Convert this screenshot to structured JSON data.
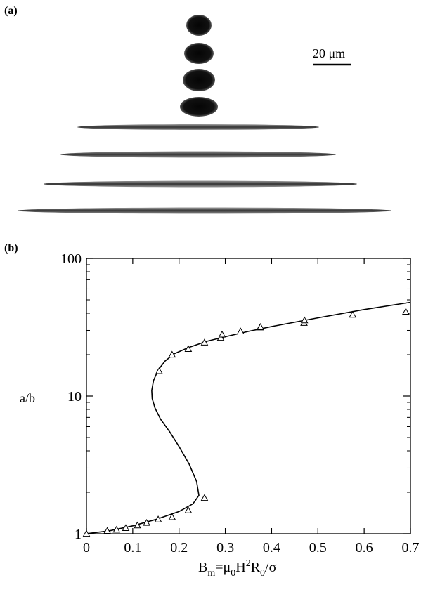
{
  "panel_a": {
    "label": "(a)",
    "scale_bar_label": "20 μm",
    "droplets": [
      {
        "shape": "sphere"
      },
      {
        "shape": "near-sphere"
      },
      {
        "shape": "near-sphere"
      },
      {
        "shape": "oblate"
      },
      {
        "shape": "elongated"
      },
      {
        "shape": "elongated"
      },
      {
        "shape": "elongated"
      },
      {
        "shape": "elongated"
      }
    ]
  },
  "panel_b": {
    "label": "(b)"
  },
  "chart_data": {
    "type": "scatter",
    "xlabel_parts": {
      "base": "B",
      "sub": "m",
      "rest": "=μ",
      "sub0": "0",
      "H": "H",
      "sup2": "2",
      "R": "R",
      "subR": "0",
      "tail": "/σ"
    },
    "ylabel": "a/b",
    "xlim": [
      0,
      0.7
    ],
    "ylim": [
      1,
      100
    ],
    "yscale": "log",
    "x_ticks": [
      "0",
      "0.1",
      "0.2",
      "0.3",
      "0.4",
      "0.5",
      "0.6",
      "0.7"
    ],
    "y_ticks": [
      "1",
      "10",
      "100"
    ],
    "grid": false,
    "series": [
      {
        "marker": "triangle-open",
        "points": [
          [
            0.0,
            1.0
          ],
          [
            0.045,
            1.05
          ],
          [
            0.065,
            1.07
          ],
          [
            0.085,
            1.1
          ],
          [
            0.11,
            1.15
          ],
          [
            0.13,
            1.2
          ],
          [
            0.155,
            1.27
          ],
          [
            0.185,
            1.32
          ],
          [
            0.22,
            1.48
          ],
          [
            0.255,
            1.82
          ],
          [
            0.157,
            15.2
          ],
          [
            0.185,
            20.0
          ],
          [
            0.22,
            22.0
          ],
          [
            0.255,
            24.5
          ],
          [
            0.29,
            26.5
          ],
          [
            0.293,
            28.0
          ],
          [
            0.333,
            29.5
          ],
          [
            0.375,
            31.5
          ],
          [
            0.376,
            31.8
          ],
          [
            0.47,
            34.0
          ],
          [
            0.471,
            35.5
          ],
          [
            0.575,
            39.0
          ],
          [
            0.69,
            41.0
          ]
        ]
      },
      {
        "marker": "line",
        "points": [
          [
            0.0,
            1.0
          ],
          [
            0.05,
            1.05
          ],
          [
            0.1,
            1.14
          ],
          [
            0.15,
            1.27
          ],
          [
            0.2,
            1.45
          ],
          [
            0.23,
            1.65
          ],
          [
            0.243,
            1.9
          ],
          [
            0.238,
            2.4
          ],
          [
            0.222,
            3.2
          ],
          [
            0.2,
            4.3
          ],
          [
            0.18,
            5.5
          ],
          [
            0.16,
            6.8
          ],
          [
            0.148,
            8.2
          ],
          [
            0.142,
            9.6
          ],
          [
            0.141,
            11.0
          ],
          [
            0.145,
            13.0
          ],
          [
            0.155,
            15.5
          ],
          [
            0.17,
            18.0
          ],
          [
            0.19,
            20.3
          ],
          [
            0.22,
            22.5
          ],
          [
            0.26,
            25.0
          ],
          [
            0.3,
            27.0
          ],
          [
            0.35,
            29.5
          ],
          [
            0.4,
            32.0
          ],
          [
            0.5,
            37.0
          ],
          [
            0.6,
            42.5
          ],
          [
            0.7,
            48.0
          ]
        ]
      }
    ]
  }
}
